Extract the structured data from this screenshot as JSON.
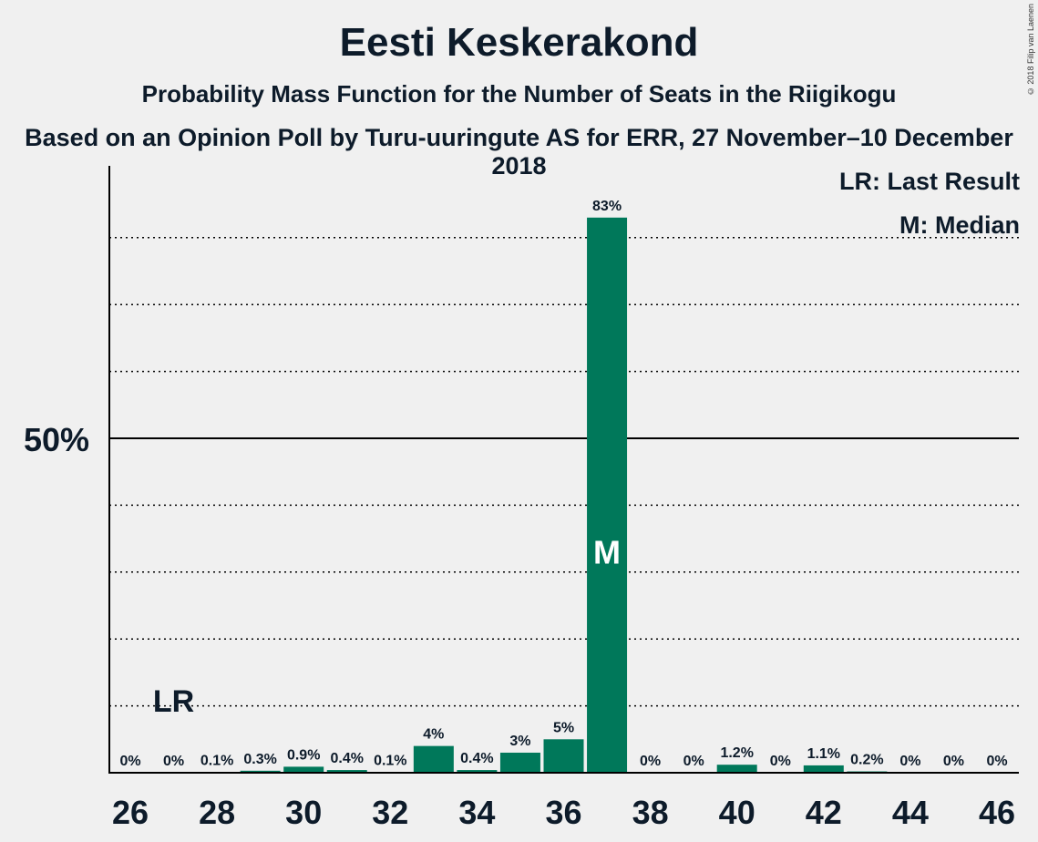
{
  "title": "Eesti Keskerakond",
  "subtitle": "Probability Mass Function for the Number of Seats in the Riigikogu",
  "subtitle2": "Based on an Opinion Poll by Turu-uuringute AS for ERR, 27 November–10 December 2018",
  "copyright": "© 2018 Filip van Laenen",
  "legend": {
    "lr": "LR: Last Result",
    "m": "M: Median"
  },
  "colors": {
    "bar": "#00785a",
    "text": "#0d1b2a",
    "background": "#f0f0f0"
  },
  "chart_data": {
    "type": "bar",
    "categories": [
      26,
      27,
      28,
      29,
      30,
      31,
      32,
      33,
      34,
      35,
      36,
      37,
      38,
      39,
      40,
      41,
      42,
      43,
      44,
      45,
      46
    ],
    "values": [
      0,
      0,
      0.1,
      0.3,
      0.9,
      0.4,
      0.1,
      4,
      0.4,
      3,
      5,
      83,
      0,
      0,
      1.2,
      0,
      1.1,
      0.2,
      0,
      0,
      0
    ],
    "labels": [
      "0%",
      "0%",
      "0.1%",
      "0.3%",
      "0.9%",
      "0.4%",
      "0.1%",
      "4%",
      "0.4%",
      "3%",
      "5%",
      "83%",
      "0%",
      "0%",
      "1.2%",
      "0%",
      "1.1%",
      "0.2%",
      "0%",
      "0%",
      "0%"
    ],
    "xticks": [
      "26",
      "28",
      "30",
      "32",
      "34",
      "36",
      "38",
      "40",
      "42",
      "44",
      "46"
    ],
    "ytick_label": "50%",
    "ylim": [
      0,
      90
    ],
    "gridlines": [
      10,
      20,
      30,
      40,
      50,
      60,
      70,
      80
    ],
    "last_result": {
      "seat": 27,
      "label": "LR"
    },
    "median": {
      "seat": 37,
      "label": "M"
    }
  }
}
